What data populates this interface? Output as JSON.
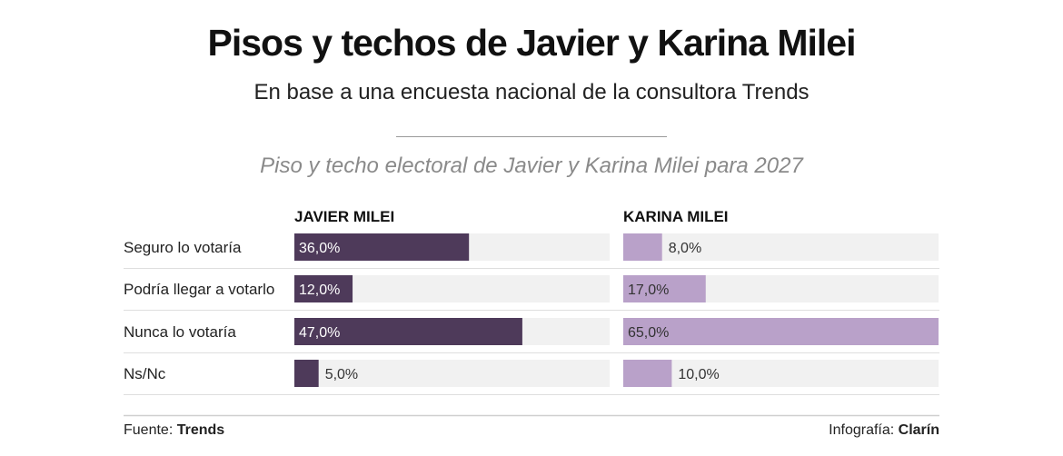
{
  "header": {
    "title": "Pisos y techos de Javier y Karina Milei",
    "subtitle": "En base a una encuesta nacional de la consultora Trends"
  },
  "chart_data": {
    "type": "bar",
    "title": "Piso y techo electoral de Javier y Karina Milei para 2027",
    "categories": [
      "Seguro lo votaría",
      "Podría llegar a votarlo",
      "Nunca lo votaría",
      "Ns/Nc"
    ],
    "series": [
      {
        "name": "JAVIER MILEI",
        "values": [
          36,
          12,
          47,
          5
        ],
        "labels": [
          "36,0%",
          "12,0%",
          "47,0%",
          "5,0%"
        ],
        "color": "#4e3a5a"
      },
      {
        "name": "KARINA MILEI",
        "values": [
          8,
          17,
          65,
          10
        ],
        "labels": [
          "8,0%",
          "17,0%",
          "65,0%",
          "10,0%"
        ],
        "color": "#b9a1c9"
      }
    ],
    "xlim": [
      0,
      65
    ],
    "track_color": "#f1f1f1",
    "xlabel": "",
    "ylabel": ""
  },
  "footer": {
    "source_label": "Fuente:",
    "source_value": "Trends",
    "credit_label": "Infografía:",
    "credit_value": "Clarín"
  }
}
